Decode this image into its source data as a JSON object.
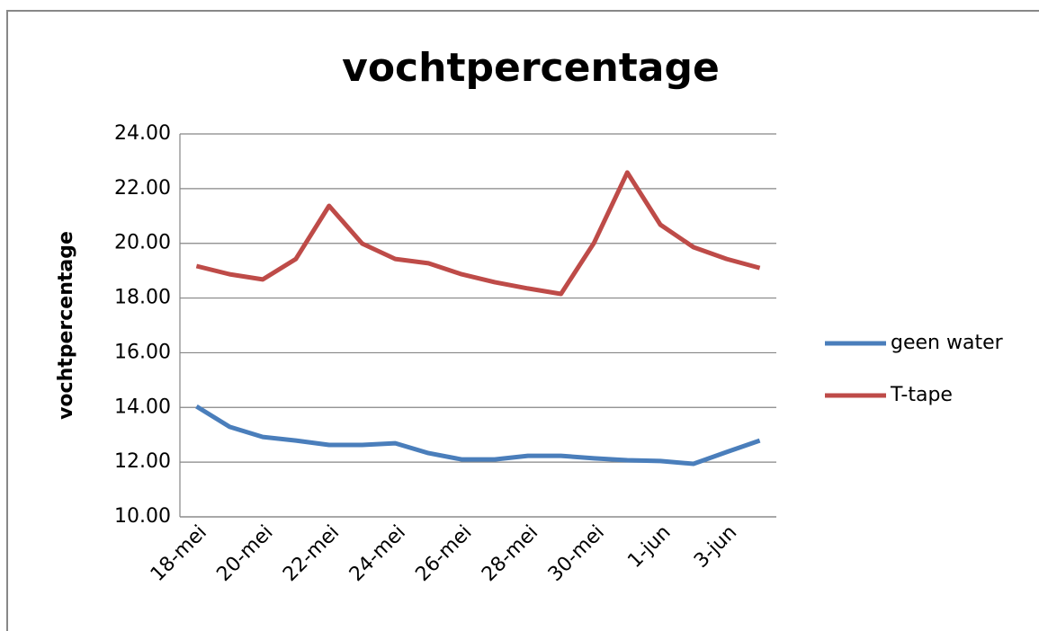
{
  "chart_data": {
    "type": "line",
    "title": "vochtpercentage",
    "y_label": "vochtpercentage",
    "categories": [
      "18-mei",
      null,
      "20-mei",
      null,
      "22-mei",
      null,
      "24-mei",
      null,
      "26-mei",
      null,
      "28-mei",
      null,
      "30-mei",
      null,
      "1-jun",
      null,
      "3-jun",
      null
    ],
    "series": [
      {
        "name": "geen water",
        "color": "#4a7ebb",
        "values": [
          14.04,
          13.29,
          12.92,
          12.79,
          12.63,
          12.63,
          12.69,
          12.33,
          12.1,
          12.1,
          12.23,
          12.23,
          12.14,
          12.07,
          12.04,
          11.94,
          12.37,
          12.79
        ]
      },
      {
        "name": "T-tape",
        "color": "#be4b48",
        "values": [
          19.17,
          18.87,
          18.68,
          19.43,
          21.37,
          19.99,
          19.43,
          19.27,
          18.87,
          18.58,
          18.35,
          18.15,
          20.02,
          22.59,
          20.68,
          19.86,
          19.43,
          19.1
        ]
      }
    ],
    "ylim": [
      10,
      24
    ],
    "yticks": [
      {
        "value": 10,
        "label": "10.00"
      },
      {
        "value": 12,
        "label": "12.00"
      },
      {
        "value": 14,
        "label": "14.00"
      },
      {
        "value": 16,
        "label": "16.00"
      },
      {
        "value": 18,
        "label": "18.00"
      },
      {
        "value": 20,
        "label": "20.00"
      },
      {
        "value": 22,
        "label": "22.00"
      },
      {
        "value": 24,
        "label": "24.00"
      }
    ],
    "grid": true,
    "legend": "right"
  }
}
